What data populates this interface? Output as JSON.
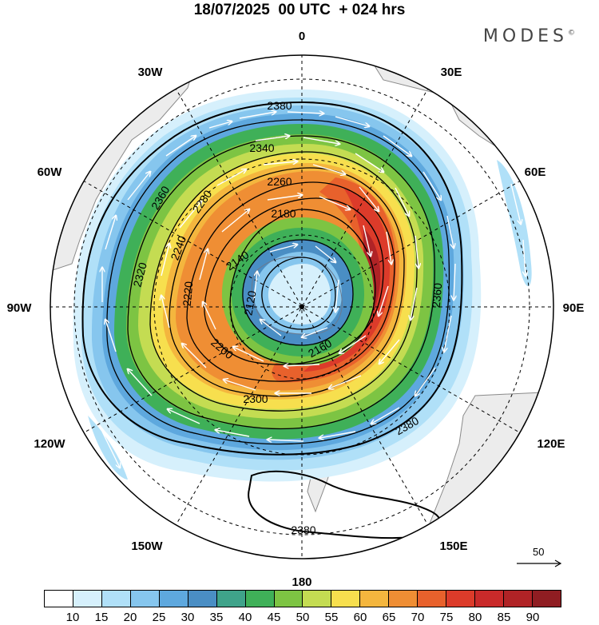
{
  "header": {
    "title": "18/07/2025  00 UTC  + 024 hrs",
    "brand": "MODES",
    "brand_mark": "©"
  },
  "map": {
    "projection": "south-polar-stereographic",
    "longitude_labels": {
      "top": "0",
      "top_right": "30E",
      "right_upper": "60E",
      "right": "90E",
      "right_lower": "120E",
      "bottom_right": "150E",
      "bottom": "180",
      "bottom_left": "150W",
      "left_lower": "120W",
      "left": "90W",
      "left_upper": "60W",
      "top_left": "30W"
    },
    "contour_units": "geopotential height",
    "contour_labels": [
      "2380",
      "2340",
      "2360",
      "2260",
      "2280",
      "2180",
      "2240",
      "2320",
      "2140",
      "2120",
      "2220",
      "2200",
      "2160",
      "2300",
      "2360",
      "2380",
      "2380"
    ],
    "colors": {
      "land": "#ececec",
      "coast": "#8a8a8a",
      "contour": "#000000",
      "vector": "#ffffff"
    }
  },
  "colorbar": {
    "ticks": [
      "10",
      "15",
      "20",
      "25",
      "30",
      "35",
      "40",
      "45",
      "50",
      "55",
      "60",
      "65",
      "70",
      "75",
      "80",
      "85",
      "90"
    ],
    "colors": [
      "#ffffff",
      "#d6f0fc",
      "#b0e0f8",
      "#86c6ee",
      "#5ea8de",
      "#4a8ec4",
      "#3fa38a",
      "#3fb058",
      "#7dc443",
      "#c4dc52",
      "#f7df4e",
      "#f4b63e",
      "#ef8e34",
      "#e8612c",
      "#dc3b2a",
      "#c92a2a",
      "#b02326",
      "#8f1d22"
    ]
  },
  "vector_key": {
    "label": "50"
  }
}
